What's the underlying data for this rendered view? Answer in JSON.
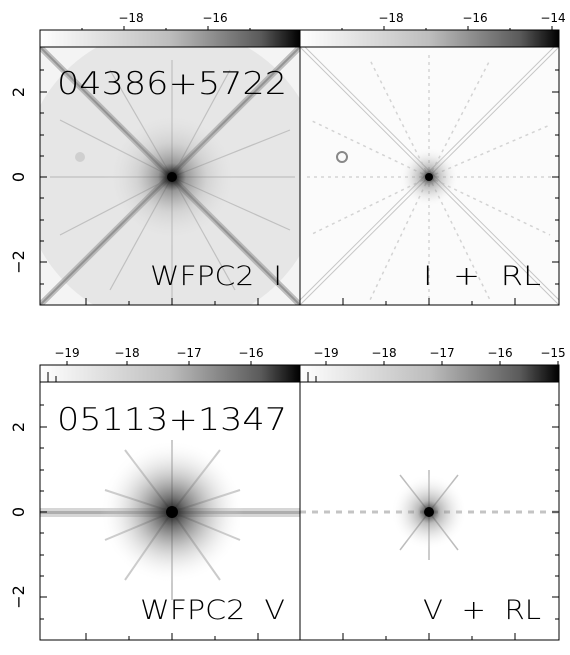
{
  "rows": [
    {
      "object_name": "04386+5722",
      "colorbar_left": {
        "ticks": [
          "−18",
          "−16"
        ]
      },
      "colorbar_right": {
        "ticks": [
          "−18",
          "−16",
          "−14"
        ]
      },
      "panel_left_label": "WFPC2  I",
      "panel_right_label": "I  +  RL",
      "y_ticks": [
        "2",
        "0",
        "−2"
      ]
    },
    {
      "object_name": "05113+1347",
      "colorbar_left": {
        "ticks": [
          "−19",
          "−18",
          "−17",
          "−16"
        ]
      },
      "colorbar_right": {
        "ticks": [
          "−19",
          "−18",
          "−17",
          "−16",
          "−15"
        ]
      },
      "panel_left_label": "WFPC2  V",
      "panel_right_label": "V  +  RL",
      "y_ticks": [
        "2",
        "0",
        "−2"
      ]
    }
  ]
}
